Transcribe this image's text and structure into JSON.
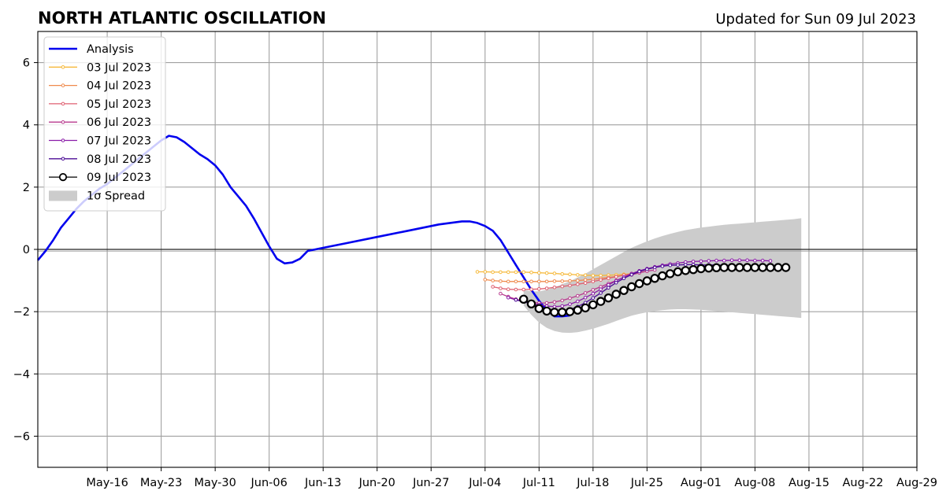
{
  "chart_data": {
    "type": "line",
    "title": "NORTH ATLANTIC OSCILLATION",
    "subtitle": "Updated for Sun 09 Jul 2023",
    "xlabel": "",
    "ylabel": "",
    "x_axis": {
      "type": "date",
      "min": "2023-05-07",
      "max": "2023-08-29",
      "ticks": [
        "2023-05-16",
        "2023-05-23",
        "2023-05-30",
        "2023-06-06",
        "2023-06-13",
        "2023-06-20",
        "2023-06-27",
        "2023-07-04",
        "2023-07-11",
        "2023-07-18",
        "2023-07-25",
        "2023-08-01",
        "2023-08-08",
        "2023-08-15",
        "2023-08-22",
        "2023-08-29"
      ],
      "tick_labels": [
        "May-16",
        "May-23",
        "May-30",
        "Jun-06",
        "Jun-13",
        "Jun-20",
        "Jun-27",
        "Jul-04",
        "Jul-11",
        "Jul-18",
        "Jul-25",
        "Aug-01",
        "Aug-08",
        "Aug-15",
        "Aug-22",
        "Aug-29"
      ]
    },
    "y_axis": {
      "min": -7,
      "max": 7,
      "ticks": [
        -6,
        -4,
        -2,
        0,
        2,
        4,
        6
      ],
      "tick_labels": [
        "−6",
        "−4",
        "−2",
        "0",
        "2",
        "4",
        "6"
      ]
    },
    "grid": true,
    "legend_position": "top-left",
    "analysis": {
      "name": "Analysis",
      "color": "#0000ee",
      "points": [
        [
          "2023-05-07",
          -0.35
        ],
        [
          "2023-05-08",
          -0.05
        ],
        [
          "2023-05-09",
          0.3
        ],
        [
          "2023-05-10",
          0.7
        ],
        [
          "2023-05-11",
          1.0
        ],
        [
          "2023-05-12",
          1.3
        ],
        [
          "2023-05-13",
          1.55
        ],
        [
          "2023-05-14",
          1.75
        ],
        [
          "2023-05-15",
          1.95
        ],
        [
          "2023-05-16",
          2.1
        ],
        [
          "2023-05-17",
          2.3
        ],
        [
          "2023-05-18",
          2.5
        ],
        [
          "2023-05-19",
          2.7
        ],
        [
          "2023-05-20",
          2.9
        ],
        [
          "2023-05-21",
          3.1
        ],
        [
          "2023-05-22",
          3.3
        ],
        [
          "2023-05-23",
          3.5
        ],
        [
          "2023-05-24",
          3.65
        ],
        [
          "2023-05-25",
          3.6
        ],
        [
          "2023-05-26",
          3.45
        ],
        [
          "2023-05-27",
          3.25
        ],
        [
          "2023-05-28",
          3.05
        ],
        [
          "2023-05-29",
          2.9
        ],
        [
          "2023-05-30",
          2.7
        ],
        [
          "2023-05-31",
          2.4
        ],
        [
          "2023-06-01",
          2.0
        ],
        [
          "2023-06-02",
          1.7
        ],
        [
          "2023-06-03",
          1.4
        ],
        [
          "2023-06-04",
          1.0
        ],
        [
          "2023-06-05",
          0.55
        ],
        [
          "2023-06-06",
          0.1
        ],
        [
          "2023-06-07",
          -0.3
        ],
        [
          "2023-06-08",
          -0.45
        ],
        [
          "2023-06-09",
          -0.42
        ],
        [
          "2023-06-10",
          -0.3
        ],
        [
          "2023-06-11",
          -0.05
        ],
        [
          "2023-06-13",
          0.05
        ],
        [
          "2023-06-16",
          0.2
        ],
        [
          "2023-06-20",
          0.4
        ],
        [
          "2023-06-24",
          0.6
        ],
        [
          "2023-06-28",
          0.8
        ],
        [
          "2023-07-01",
          0.9
        ],
        [
          "2023-07-02",
          0.9
        ],
        [
          "2023-07-03",
          0.85
        ],
        [
          "2023-07-04",
          0.75
        ],
        [
          "2023-07-05",
          0.6
        ],
        [
          "2023-07-06",
          0.3
        ],
        [
          "2023-07-07",
          -0.1
        ],
        [
          "2023-07-08",
          -0.5
        ],
        [
          "2023-07-09",
          -0.9
        ],
        [
          "2023-07-10",
          -1.3
        ],
        [
          "2023-07-11",
          -1.65
        ],
        [
          "2023-07-12",
          -1.95
        ],
        [
          "2023-07-13",
          -2.15
        ],
        [
          "2023-07-14",
          -2.15
        ],
        [
          "2023-07-15",
          -2.12
        ]
      ]
    },
    "forecasts": [
      {
        "name": "03 Jul 2023",
        "color": "#f6b93b",
        "start": "2023-07-03",
        "values": [
          -0.72,
          -0.72,
          -0.73,
          -0.73,
          -0.73,
          -0.73,
          -0.73,
          -0.74,
          -0.75,
          -0.76,
          -0.77,
          -0.79,
          -0.8,
          -0.82,
          -0.83,
          -0.84,
          -0.84,
          -0.83,
          -0.82,
          -0.8,
          -0.78
        ]
      },
      {
        "name": "04 Jul 2023",
        "color": "#ef8a4c",
        "start": "2023-07-04",
        "values": [
          -0.97,
          -1.0,
          -1.02,
          -1.03,
          -1.03,
          -1.03,
          -1.03,
          -1.03,
          -1.03,
          -1.02,
          -1.02,
          -1.01,
          -1.0,
          -0.98,
          -0.96,
          -0.93,
          -0.9,
          -0.87,
          -0.83,
          -0.79,
          -0.75
        ]
      },
      {
        "name": "05 Jul 2023",
        "color": "#df5f70",
        "start": "2023-07-05",
        "values": [
          -1.2,
          -1.25,
          -1.28,
          -1.29,
          -1.29,
          -1.28,
          -1.27,
          -1.25,
          -1.22,
          -1.19,
          -1.16,
          -1.12,
          -1.08,
          -1.03,
          -0.98,
          -0.93,
          -0.88,
          -0.83,
          -0.78,
          -0.74,
          -0.7
        ]
      },
      {
        "name": "06 Jul 2023",
        "color": "#b83a8e",
        "start": "2023-07-06",
        "values": [
          -1.42,
          -1.52,
          -1.6,
          -1.66,
          -1.7,
          -1.72,
          -1.72,
          -1.69,
          -1.64,
          -1.57,
          -1.49,
          -1.4,
          -1.3,
          -1.2,
          -1.1,
          -1.0,
          -0.9,
          -0.82,
          -0.75,
          -0.7,
          -0.66
        ]
      },
      {
        "name": "07 Jul 2023",
        "color": "#8a1ba8",
        "start": "2023-07-07",
        "values": [
          -1.55,
          -1.62,
          -1.68,
          -1.74,
          -1.78,
          -1.82,
          -1.84,
          -1.82,
          -1.76,
          -1.67,
          -1.55,
          -1.42,
          -1.28,
          -1.14,
          -1.01,
          -0.89,
          -0.78,
          -0.69,
          -0.62,
          -0.56,
          -0.51,
          -0.47,
          -0.44,
          -0.41,
          -0.39,
          -0.38,
          -0.37,
          -0.36,
          -0.36,
          -0.35,
          -0.35,
          -0.35,
          -0.36,
          -0.36,
          -0.37
        ]
      },
      {
        "name": "08 Jul 2023",
        "color": "#4b0c96",
        "start": "2023-07-08",
        "values": [
          -1.62,
          -1.68,
          -1.75,
          -1.83,
          -1.9,
          -1.95,
          -1.97,
          -1.93,
          -1.84,
          -1.71,
          -1.56,
          -1.4,
          -1.23,
          -1.07,
          -0.93,
          -0.81,
          -0.71,
          -0.64,
          -0.58,
          -0.54,
          -0.51,
          -0.5,
          -0.49,
          -0.49,
          -0.5,
          -0.5,
          -0.5,
          -0.51,
          -0.52,
          -0.52,
          -0.52,
          -0.53,
          -0.53,
          -0.53,
          -0.53
        ]
      },
      {
        "name": "09 Jul 2023",
        "color": "#000000",
        "marker": "open-circle",
        "start": "2023-07-09",
        "values": [
          -1.6,
          -1.75,
          -1.9,
          -1.98,
          -2.02,
          -2.02,
          -2.0,
          -1.95,
          -1.88,
          -1.78,
          -1.67,
          -1.56,
          -1.44,
          -1.32,
          -1.2,
          -1.1,
          -1.01,
          -0.93,
          -0.85,
          -0.78,
          -0.72,
          -0.68,
          -0.65,
          -0.62,
          -0.6,
          -0.59,
          -0.58,
          -0.58,
          -0.58,
          -0.58,
          -0.58,
          -0.58,
          -0.58,
          -0.58,
          -0.58
        ]
      }
    ],
    "spread": {
      "name": "1σ Spread",
      "color": "#cccccc",
      "start": "2023-07-09",
      "upper": [
        -1.3,
        -1.35,
        -1.35,
        -1.3,
        -1.22,
        -1.12,
        -1.02,
        -0.9,
        -0.78,
        -0.64,
        -0.5,
        -0.36,
        -0.22,
        -0.08,
        0.05,
        0.16,
        0.26,
        0.35,
        0.43,
        0.5,
        0.56,
        0.62,
        0.66,
        0.7,
        0.73,
        0.76,
        0.79,
        0.81,
        0.83,
        0.85,
        0.87,
        0.89,
        0.91,
        0.93,
        0.95,
        0.97,
        1.0
      ],
      "lower": [
        -1.8,
        -2.1,
        -2.35,
        -2.52,
        -2.62,
        -2.67,
        -2.68,
        -2.66,
        -2.61,
        -2.55,
        -2.47,
        -2.39,
        -2.3,
        -2.21,
        -2.13,
        -2.07,
        -2.02,
        -1.98,
        -1.95,
        -1.93,
        -1.92,
        -1.92,
        -1.93,
        -1.94,
        -1.96,
        -1.98,
        -2.0,
        -2.02,
        -2.04,
        -2.06,
        -2.08,
        -2.1,
        -2.12,
        -2.14,
        -2.16,
        -2.18,
        -2.2
      ]
    }
  }
}
